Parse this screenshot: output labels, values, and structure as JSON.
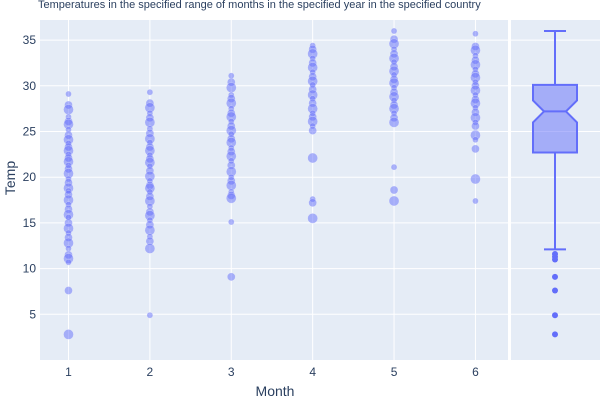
{
  "chart_data": {
    "type": "scatter",
    "title": "Temperatures in the specified range of months in the specified year in the specified country",
    "xlabel": "Month",
    "ylabel": "Temp",
    "x_ticks": [
      1,
      2,
      3,
      4,
      5,
      6
    ],
    "y_ticks": [
      5,
      10,
      15,
      20,
      25,
      30,
      35
    ],
    "ylim": [
      0,
      37.2
    ],
    "xlim": [
      0.65,
      6.4
    ],
    "grid": true,
    "colors": {
      "plot_bg": "#e5ecf6",
      "grid": "#ffffff",
      "marker": "#636efa",
      "text": "#2a3f5f"
    },
    "series": [
      {
        "x": 1,
        "values": [
          29.1,
          27.9,
          27.4,
          26.6,
          26.1,
          25.8,
          25.2,
          24.6,
          24.1,
          23.7,
          23.3,
          22.9,
          22.5,
          22.1,
          21.7,
          21.3,
          20.9,
          20.4,
          19.8,
          19.4,
          18.8,
          18.5,
          18.1,
          17.5,
          17.0,
          16.5,
          15.9,
          15.6,
          15.0,
          14.4,
          13.9,
          13.4,
          12.8,
          12.2,
          11.5,
          11.1,
          10.7,
          7.6,
          2.8
        ]
      },
      {
        "x": 2,
        "values": [
          29.3,
          28.1,
          27.6,
          27.0,
          26.5,
          26.0,
          25.3,
          24.8,
          24.2,
          23.8,
          23.3,
          22.9,
          22.4,
          22.0,
          21.6,
          21.2,
          20.7,
          20.1,
          19.6,
          19.1,
          18.8,
          18.4,
          17.9,
          17.4,
          16.8,
          16.2,
          15.8,
          15.3,
          14.8,
          14.2,
          13.5,
          13.0,
          12.2,
          4.9
        ]
      },
      {
        "x": 3,
        "values": [
          31.1,
          30.4,
          29.8,
          29.0,
          28.6,
          28.1,
          27.5,
          27.0,
          26.6,
          26.1,
          25.6,
          25.1,
          24.7,
          24.2,
          23.8,
          23.2,
          22.8,
          22.3,
          21.8,
          21.3,
          20.6,
          20.0,
          19.6,
          19.1,
          18.4,
          18.0,
          17.7,
          15.1,
          9.1
        ]
      },
      {
        "x": 4,
        "values": [
          34.4,
          34.0,
          33.5,
          33.0,
          32.5,
          32.0,
          31.5,
          31.0,
          30.5,
          30.1,
          29.6,
          29.0,
          28.6,
          28.1,
          27.5,
          27.0,
          26.6,
          26.1,
          25.6,
          25.1,
          22.1,
          17.6,
          17.2,
          15.5
        ]
      },
      {
        "x": 5,
        "values": [
          36.0,
          35.1,
          34.6,
          34.0,
          33.5,
          33.0,
          32.6,
          32.1,
          31.6,
          31.2,
          30.7,
          30.3,
          29.8,
          29.3,
          28.8,
          28.4,
          27.9,
          27.5,
          27.0,
          26.5,
          26.0,
          21.1,
          18.6,
          17.4
        ]
      },
      {
        "x": 6,
        "values": [
          35.7,
          34.3,
          33.9,
          33.3,
          32.8,
          32.3,
          31.8,
          31.3,
          30.9,
          30.4,
          30.0,
          29.5,
          29.0,
          28.5,
          28.1,
          27.6,
          27.1,
          26.5,
          26.0,
          25.6,
          24.6,
          24.1,
          23.1,
          19.8,
          17.4
        ]
      }
    ],
    "box": {
      "upper_fence": 36.0,
      "q3": 30.1,
      "median": 27.2,
      "q1": 22.7,
      "lower_fence": 12.1,
      "notch_low": 26.0,
      "notch_high": 28.4,
      "outliers": [
        11.6,
        11.3,
        11.0,
        9.1,
        7.6,
        4.9,
        2.8
      ]
    }
  }
}
